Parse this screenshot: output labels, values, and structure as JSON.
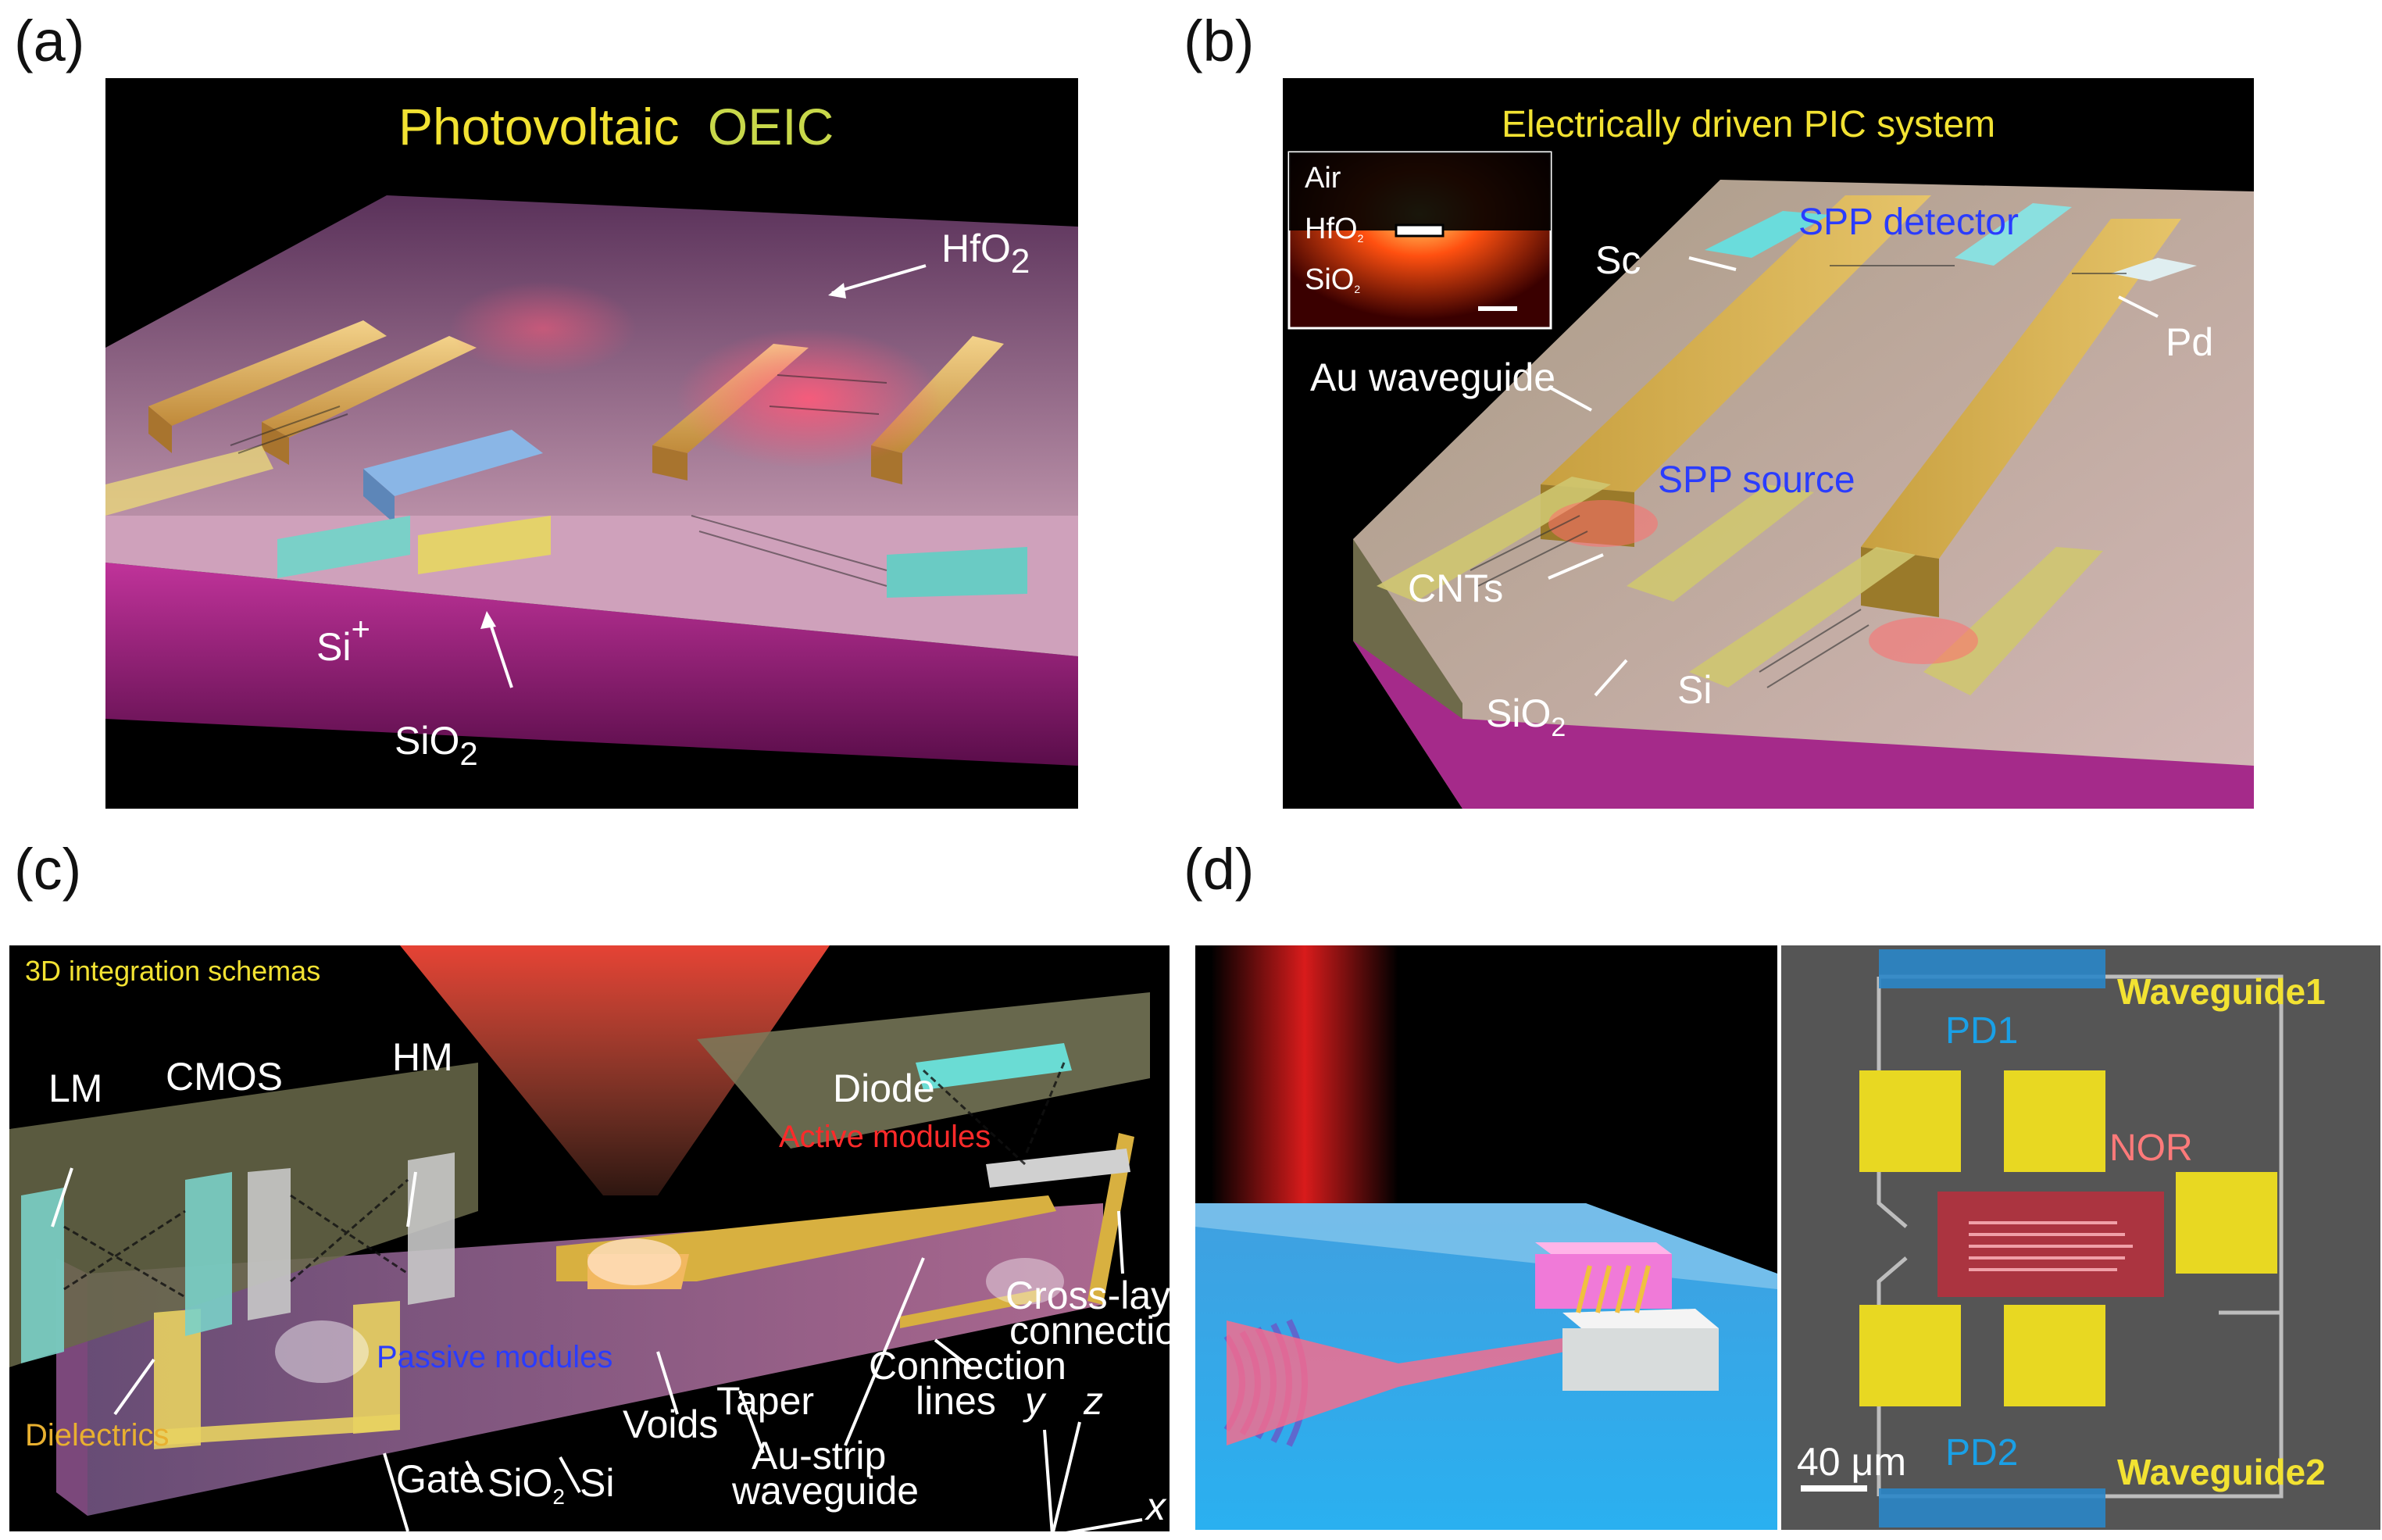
{
  "panels": {
    "a": {
      "letter": "(a)",
      "title_part1": "Photovoltaic",
      "title_part2": "OEIC",
      "labels": {
        "hfo2": "HfO",
        "hfo2_sub": "2",
        "si": "Si",
        "si_sup": "+",
        "sio2": "SiO",
        "sio2_sub": "2"
      }
    },
    "b": {
      "letter": "(b)",
      "title": "Electrically driven PIC system",
      "inset": {
        "air": "Air",
        "hfo2": "HfO",
        "hfo2_sub": "2",
        "sio2": "SiO",
        "sio2_sub": "2"
      },
      "labels": {
        "sc": "Sc",
        "spp_detector": "SPP detector",
        "pd": "Pd",
        "au_waveguide": "Au waveguide",
        "spp_source": "SPP source",
        "cnts": "CNTs",
        "sio2": "SiO",
        "sio2_sub": "2",
        "si": "Si"
      }
    },
    "c": {
      "letter": "(c)",
      "title": "3D integration schemas",
      "labels": {
        "lm": "LM",
        "cmos": "CMOS",
        "hm": "HM",
        "diode": "Diode",
        "active_modules": "Active modules",
        "passive_modules": "Passive modules",
        "dielectrics": "Dielectrics",
        "gate": "Gate",
        "sio2": "SiO",
        "sio2_sub": "2",
        "si": "Si",
        "voids": "Voids",
        "taper": "Taper",
        "au_strip_1": "Au-strip",
        "au_strip_2": "waveguide",
        "connection_1": "Connection",
        "connection_2": "lines",
        "cross_layer_1": "Cross-layer",
        "cross_layer_2": "connection",
        "axis_x": "x",
        "axis_y": "y",
        "axis_z": "z"
      }
    },
    "d": {
      "letter": "(d)",
      "labels": {
        "pd1": "PD1",
        "pd2": "PD2",
        "waveguide1": "Waveguide1",
        "waveguide2": "Waveguide2",
        "nor": "NOR",
        "scale": "40 μm"
      }
    }
  },
  "colors": {
    "yellow_title": "#f2e232",
    "olive_title": "#c8d84a",
    "blue_label": "#2a3cff",
    "red_label": "#ff2a2a",
    "cyan_label": "#1aa0e6",
    "gold": "#d8b04a",
    "magenta": "#8a1e7a"
  }
}
